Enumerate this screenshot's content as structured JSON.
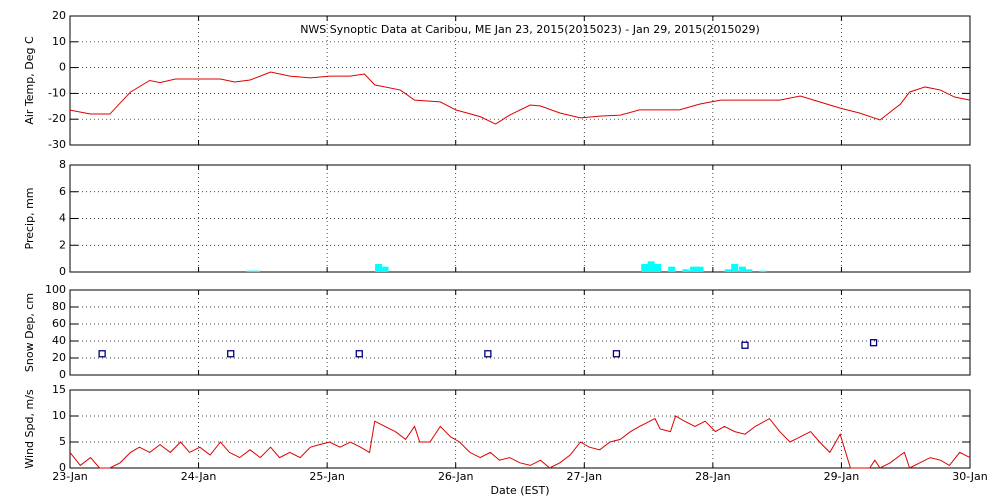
{
  "chart_data": [
    {
      "type": "line",
      "title": "NWS Synoptic Data at Caribou, ME   Jan 23, 2015(2015023) - Jan 29, 2015(2015029)",
      "ylabel": "Air Temp, Deg C",
      "color": "#dd0000",
      "grid": true,
      "x": [
        0,
        0.16,
        0.31,
        0.47,
        0.62,
        0.7,
        0.82,
        1.01,
        1.17,
        1.28,
        1.4,
        1.48,
        1.56,
        1.71,
        1.87,
        2.02,
        2.18,
        2.29,
        2.37,
        2.57,
        2.68,
        2.88,
        3.0,
        3.19,
        3.31,
        3.42,
        3.58,
        3.66,
        3.81,
        3.97,
        4.12,
        4.28,
        4.43,
        4.74,
        4.9,
        5.06,
        5.52,
        5.68,
        5.83,
        5.99,
        6.14,
        6.3,
        6.46,
        6.53,
        6.65,
        6.77,
        6.88,
        7.0
      ],
      "values": [
        -16.5,
        -18,
        -18,
        -9.5,
        -5,
        -5.8,
        -4.4,
        -4.4,
        -4.4,
        -5.6,
        -4.8,
        -3.3,
        -1.7,
        -3.3,
        -4,
        -3.3,
        -3.3,
        -2.5,
        -6.7,
        -8.7,
        -12.6,
        -13.3,
        -16.4,
        -19,
        -21.9,
        -18.4,
        -14.5,
        -14.9,
        -17.6,
        -19.5,
        -18.8,
        -18.4,
        -16.4,
        -16.4,
        -14.1,
        -12.6,
        -12.6,
        -11,
        -13.3,
        -15.7,
        -17.6,
        -20.3,
        -14.1,
        -9.5,
        -7.5,
        -8.7,
        -11.4,
        -12.6
      ],
      "xlim": [
        0,
        7
      ],
      "ylim": [
        -30,
        20
      ],
      "yticks": [
        -30,
        -20,
        -10,
        0,
        10,
        20
      ]
    },
    {
      "type": "bar",
      "ylabel": "Precip, mm",
      "color": "#00ffff",
      "grid": true,
      "x": [
        1.4,
        1.45,
        2.4,
        2.45,
        4.47,
        4.52,
        4.57,
        4.68,
        4.79,
        4.85,
        4.9,
        5.12,
        5.17,
        5.23,
        5.28,
        5.39
      ],
      "values": [
        0.1,
        0.1,
        0.6,
        0.4,
        0.6,
        0.8,
        0.6,
        0.4,
        0.2,
        0.4,
        0.4,
        0.2,
        0.6,
        0.4,
        0.2,
        0.1
      ],
      "xlim": [
        0,
        7
      ],
      "ylim": [
        0,
        8
      ],
      "yticks": [
        0,
        2,
        4,
        6,
        8
      ]
    },
    {
      "type": "scatter",
      "ylabel": "Snow Dep, cm",
      "color": "#000080",
      "grid": true,
      "x": [
        0.25,
        1.25,
        2.25,
        3.25,
        4.25,
        5.25,
        6.25
      ],
      "values": [
        25,
        25,
        25,
        25,
        25,
        35,
        38
      ],
      "xlim": [
        0,
        7
      ],
      "ylim": [
        0,
        100
      ],
      "yticks": [
        0,
        20,
        40,
        60,
        80,
        100
      ]
    },
    {
      "type": "line",
      "ylabel": "Wind Spd, m/s",
      "xlabel": "Date (EST)",
      "color": "#dd0000",
      "grid": true,
      "x": [
        0,
        0.08,
        0.16,
        0.23,
        0.31,
        0.39,
        0.47,
        0.54,
        0.62,
        0.7,
        0.78,
        0.86,
        0.93,
        1.01,
        1.09,
        1.17,
        1.24,
        1.32,
        1.4,
        1.48,
        1.56,
        1.63,
        1.71,
        1.79,
        1.87,
        1.94,
        2.02,
        2.1,
        2.18,
        2.26,
        2.33,
        2.37,
        2.45,
        2.53,
        2.61,
        2.68,
        2.72,
        2.8,
        2.88,
        2.96,
        3.03,
        3.11,
        3.19,
        3.27,
        3.34,
        3.42,
        3.5,
        3.58,
        3.66,
        3.73,
        3.81,
        3.89,
        3.97,
        4.04,
        4.12,
        4.2,
        4.28,
        4.36,
        4.43,
        4.51,
        4.55,
        4.59,
        4.67,
        4.71,
        4.78,
        4.86,
        4.94,
        5.02,
        5.09,
        5.17,
        5.25,
        5.33,
        5.44,
        5.52,
        5.6,
        5.68,
        5.76,
        5.83,
        5.91,
        5.99,
        6.07,
        6.14,
        6.22,
        6.26,
        6.3,
        6.38,
        6.46,
        6.49,
        6.53,
        6.61,
        6.69,
        6.77,
        6.84,
        6.92,
        7.0
      ],
      "values": [
        3,
        0.5,
        2,
        0,
        0,
        1,
        3,
        4,
        3,
        4.5,
        3,
        5,
        3,
        4,
        2.5,
        5,
        3,
        2,
        3.5,
        2,
        4,
        2,
        3,
        2,
        4,
        4.5,
        5,
        4,
        5,
        4,
        3,
        9,
        8,
        7,
        5.5,
        8,
        5,
        5,
        8,
        6,
        5,
        3,
        2,
        3,
        1.5,
        2,
        1,
        0.5,
        1.5,
        0,
        1,
        2.5,
        5,
        4,
        3.5,
        5,
        5.5,
        7,
        8,
        9,
        9.5,
        7.5,
        7,
        10,
        9,
        8,
        9,
        7,
        8,
        7,
        6.5,
        8,
        9.5,
        7,
        5,
        6,
        7,
        5,
        3,
        6.5,
        0,
        0,
        0,
        1.5,
        0,
        1,
        2.5,
        3,
        0,
        1,
        2,
        1.5,
        0.5,
        3,
        2
      ],
      "xlim": [
        0,
        7
      ],
      "ylim": [
        0,
        15
      ],
      "yticks": [
        0,
        5,
        10,
        15
      ],
      "xticks": [
        {
          "value": 0,
          "label": "23-Jan"
        },
        {
          "value": 1,
          "label": "24-Jan"
        },
        {
          "value": 2,
          "label": "25-Jan"
        },
        {
          "value": 3,
          "label": "26-Jan"
        },
        {
          "value": 4,
          "label": "27-Jan"
        },
        {
          "value": 5,
          "label": "28-Jan"
        },
        {
          "value": 6,
          "label": "29-Jan"
        },
        {
          "value": 7,
          "label": "30-Jan"
        }
      ]
    }
  ]
}
